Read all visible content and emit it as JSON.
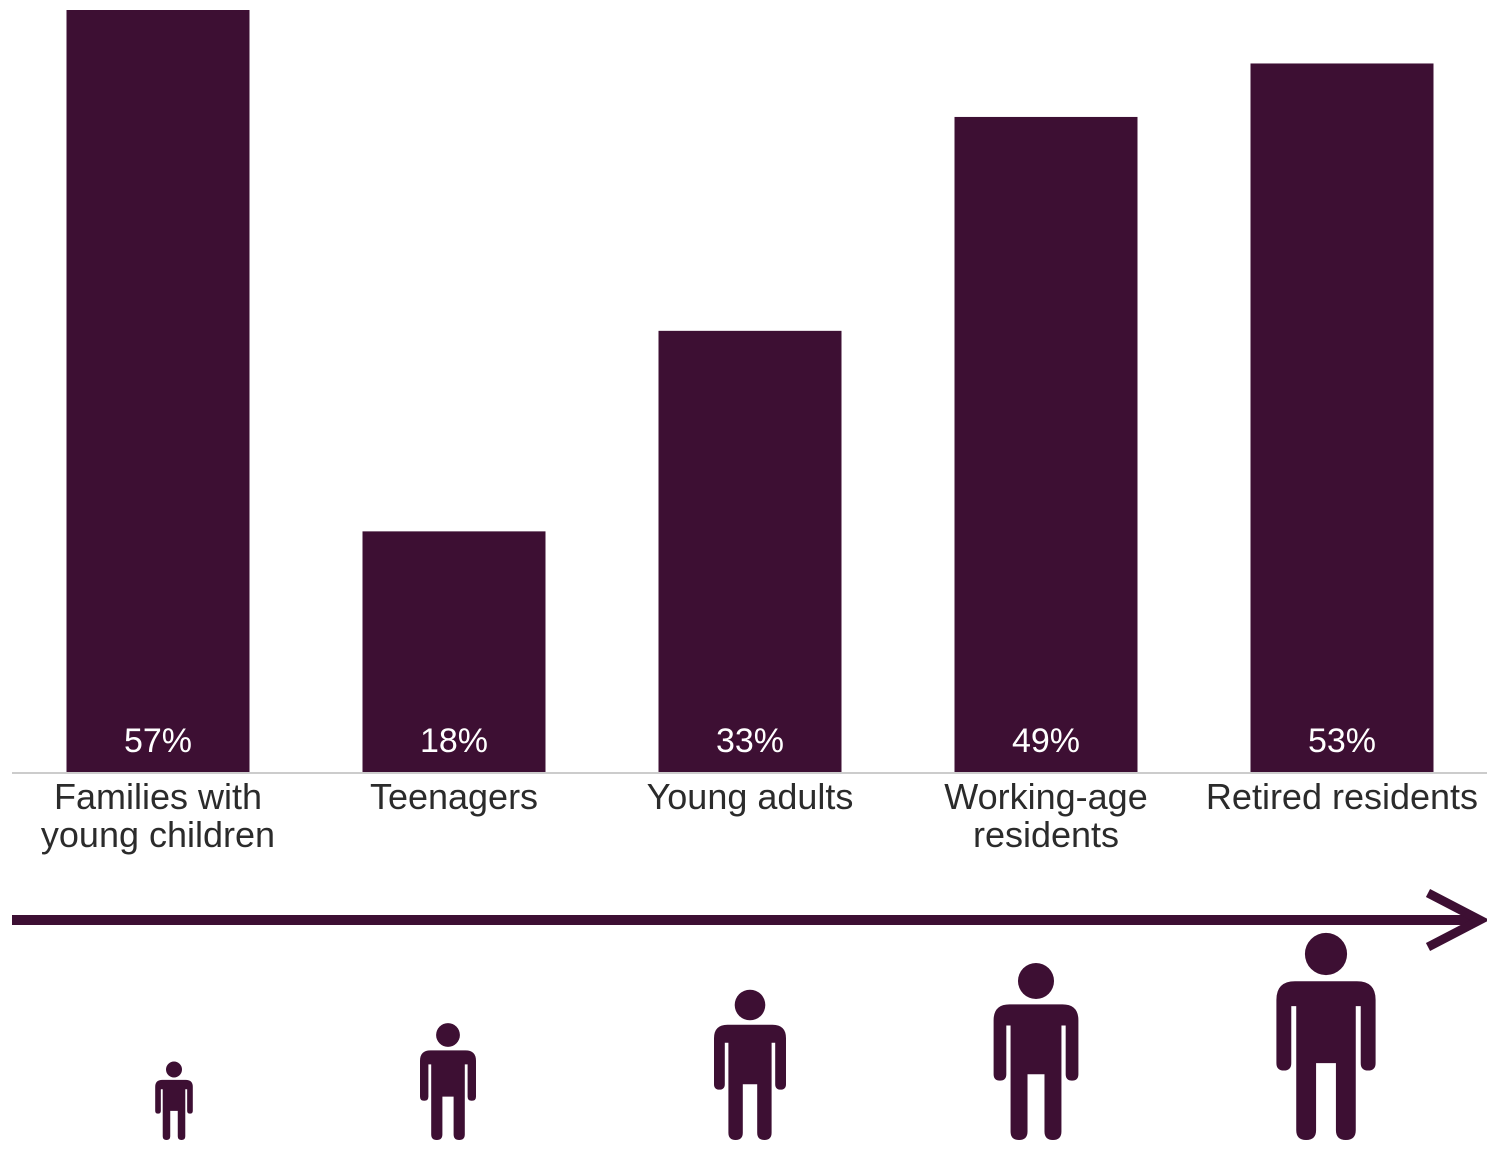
{
  "colors": {
    "bar": "#3d0f33",
    "baseline": "#cccccc",
    "text": "#2b2b2b",
    "icon": "#3d0f33",
    "arrow": "#3d0f33"
  },
  "chart_data": {
    "type": "bar",
    "categories": [
      "Families with\nyoung children",
      "Teenagers",
      "Young adults",
      "Working-age\nresidents",
      "Retired residents"
    ],
    "values": [
      57,
      18,
      33,
      49,
      53
    ],
    "value_labels": [
      "57%",
      "18%",
      "33%",
      "49%",
      "53%"
    ],
    "title": "",
    "xlabel": "",
    "ylabel": "",
    "ylim": [
      0,
      57
    ],
    "grid": false,
    "legend": "none"
  },
  "icons": [
    "person-icon",
    "person-icon",
    "person-icon",
    "person-icon",
    "person-icon"
  ],
  "arrow_icon": "arrow-right-icon"
}
